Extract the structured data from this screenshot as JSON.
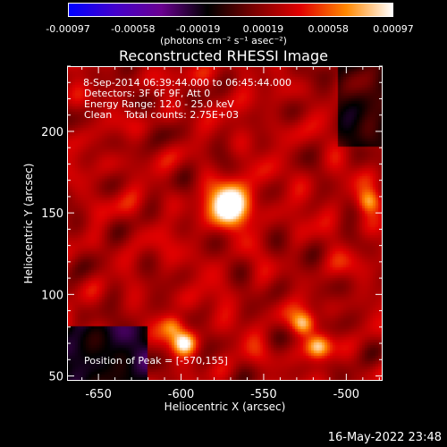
{
  "colorbar": {
    "ticks": [
      "-0.00097",
      "-0.00058",
      "-0.00019",
      "0.00019",
      "0.00058",
      "0.00097"
    ],
    "units": "(photons cm⁻² s⁻¹ asec⁻²)",
    "colors": [
      "#0000ff",
      "#4400cc",
      "#6a0090",
      "#000000",
      "#7a0000",
      "#e00000",
      "#ff8800",
      "#ffffff"
    ]
  },
  "overlay": {
    "time_range": "8-Sep-2014 06:39:44.000 to 06:45:44.000",
    "detectors": "Detectors: 3F 6F 9F, Att 0",
    "energy_range": "Energy Range: 12.0 - 25.0 keV",
    "clean": "Clean    Total counts: 2.75E+03",
    "peak_position": "Position of Peak = [-570,155]"
  },
  "footer": {
    "timestamp": "16-May-2022 23:48"
  },
  "chart_data": {
    "type": "heatmap",
    "title": "Reconstructed RHESSI Image",
    "xlabel": "Heliocentric X (arcsec)",
    "ylabel": "Heliocentric Y (arcsec)",
    "xlim": [
      -669,
      -478
    ],
    "ylim": [
      47,
      240
    ],
    "xticks": [
      -650,
      -600,
      -550,
      -500
    ],
    "yticks": [
      50,
      100,
      150,
      200
    ],
    "clim": [
      -0.00097,
      0.00097
    ],
    "sources": [
      {
        "x": -570,
        "y": 155,
        "value": 0.00097
      },
      {
        "x": -598,
        "y": 70,
        "value": 0.0007
      },
      {
        "x": -526,
        "y": 82,
        "value": 0.0006
      },
      {
        "x": -517,
        "y": 68,
        "value": 0.00055
      },
      {
        "x": -486,
        "y": 157,
        "value": 0.0005
      },
      {
        "x": -605,
        "y": 80,
        "value": 0.00045
      }
    ]
  }
}
